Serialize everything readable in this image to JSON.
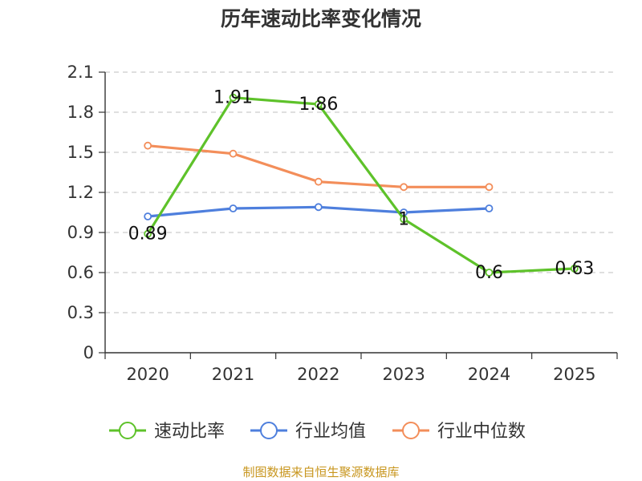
{
  "chart_data": {
    "type": "line",
    "title": "历年速动比率变化情况",
    "categories": [
      "2020",
      "2021",
      "2022",
      "2023",
      "2024",
      "2025"
    ],
    "y_ticks": [
      "0",
      "0.3",
      "0.6",
      "0.9",
      "1.2",
      "1.5",
      "1.8",
      "2.1"
    ],
    "ylim": [
      0,
      2.1
    ],
    "grid": true,
    "legend_position": "bottom",
    "series": [
      {
        "name": "速动比率",
        "color": "#5ec22a",
        "values": [
          0.89,
          1.91,
          1.86,
          1.0,
          0.6,
          0.63
        ],
        "labels": [
          "0.89",
          "1.91",
          "1.86",
          "1",
          "0.6",
          "0.63"
        ]
      },
      {
        "name": "行业均值",
        "color": "#4e7fdd",
        "values": [
          1.02,
          1.08,
          1.09,
          1.05,
          1.08,
          null
        ]
      },
      {
        "name": "行业中位数",
        "color": "#f38e5a",
        "values": [
          1.55,
          1.49,
          1.28,
          1.24,
          1.24,
          null
        ]
      }
    ]
  },
  "source_note": "制图数据来自恒生聚源数据库"
}
